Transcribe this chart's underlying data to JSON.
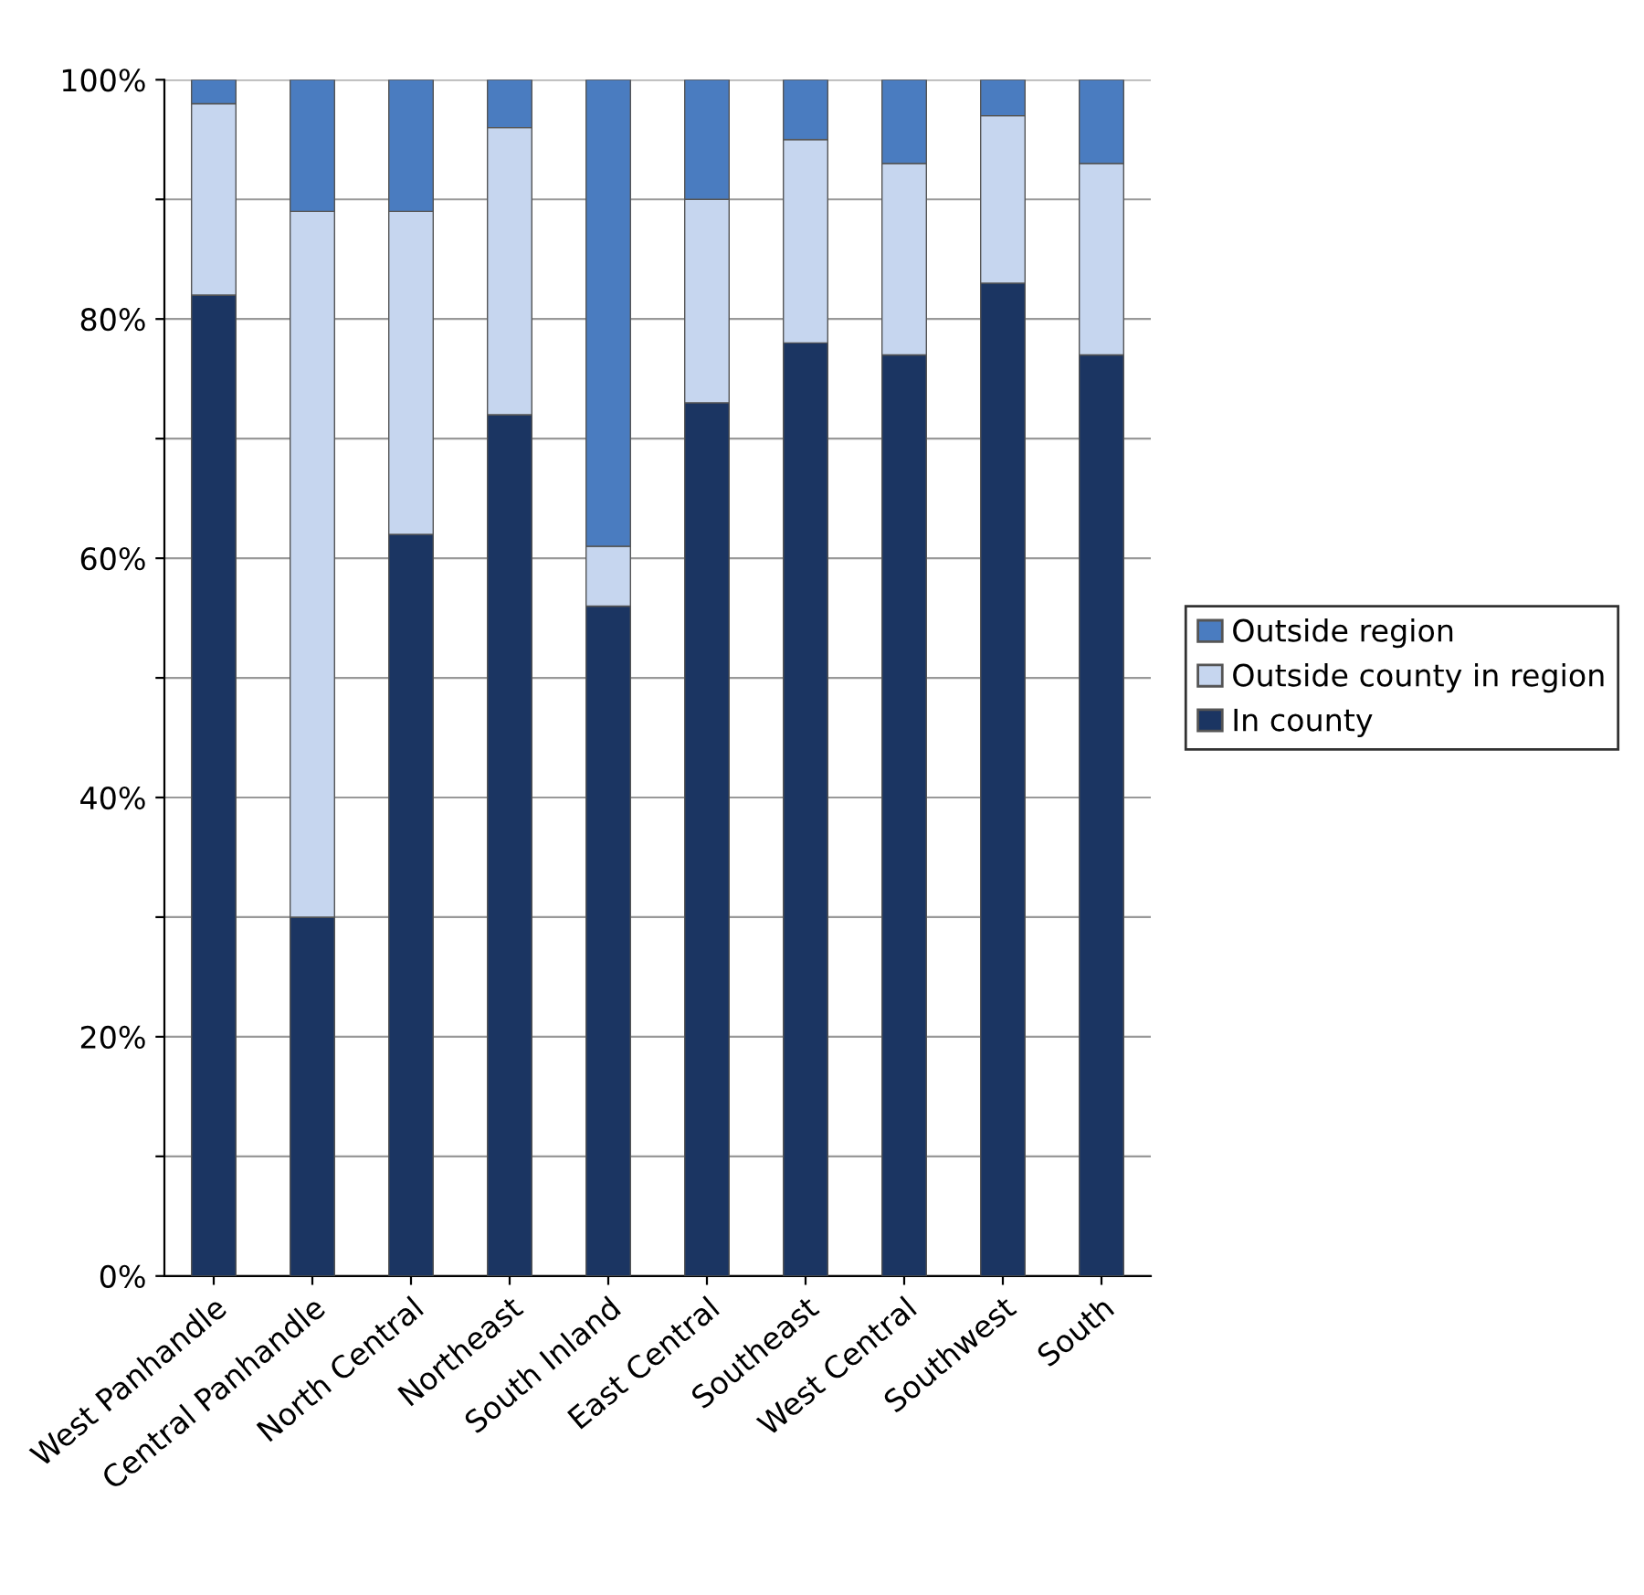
{
  "chart_data": {
    "type": "bar",
    "stacked": true,
    "categories": [
      "West Panhandle",
      "Central Panhandle",
      "North Central",
      "Northeast",
      "South Inland",
      "East Central",
      "Southeast",
      "West Central",
      "Southwest",
      "South"
    ],
    "series": [
      {
        "name": "In county",
        "color": "#1b3562",
        "values": [
          82,
          30,
          62,
          72,
          56,
          73,
          78,
          77,
          83,
          77
        ]
      },
      {
        "name": "Outside county in region",
        "color": "#c6d6ef",
        "values": [
          16,
          59,
          27,
          24,
          5,
          17,
          17,
          16,
          14,
          16
        ]
      },
      {
        "name": "Outside region",
        "color": "#4a7cc0",
        "values": [
          2,
          11,
          11,
          4,
          39,
          10,
          5,
          7,
          3,
          7
        ]
      }
    ],
    "ylim": [
      0,
      100
    ],
    "yticks": [
      {
        "value": 0,
        "label": "0%"
      },
      {
        "value": 10,
        "label": null
      },
      {
        "value": 20,
        "label": "20%"
      },
      {
        "value": 30,
        "label": null
      },
      {
        "value": 40,
        "label": "40%"
      },
      {
        "value": 50,
        "label": null
      },
      {
        "value": 60,
        "label": "60%"
      },
      {
        "value": 70,
        "label": null
      },
      {
        "value": 80,
        "label": "80%"
      },
      {
        "value": 90,
        "label": null
      },
      {
        "value": 100,
        "label": "100%"
      }
    ],
    "grid": "y",
    "legend": "right"
  }
}
